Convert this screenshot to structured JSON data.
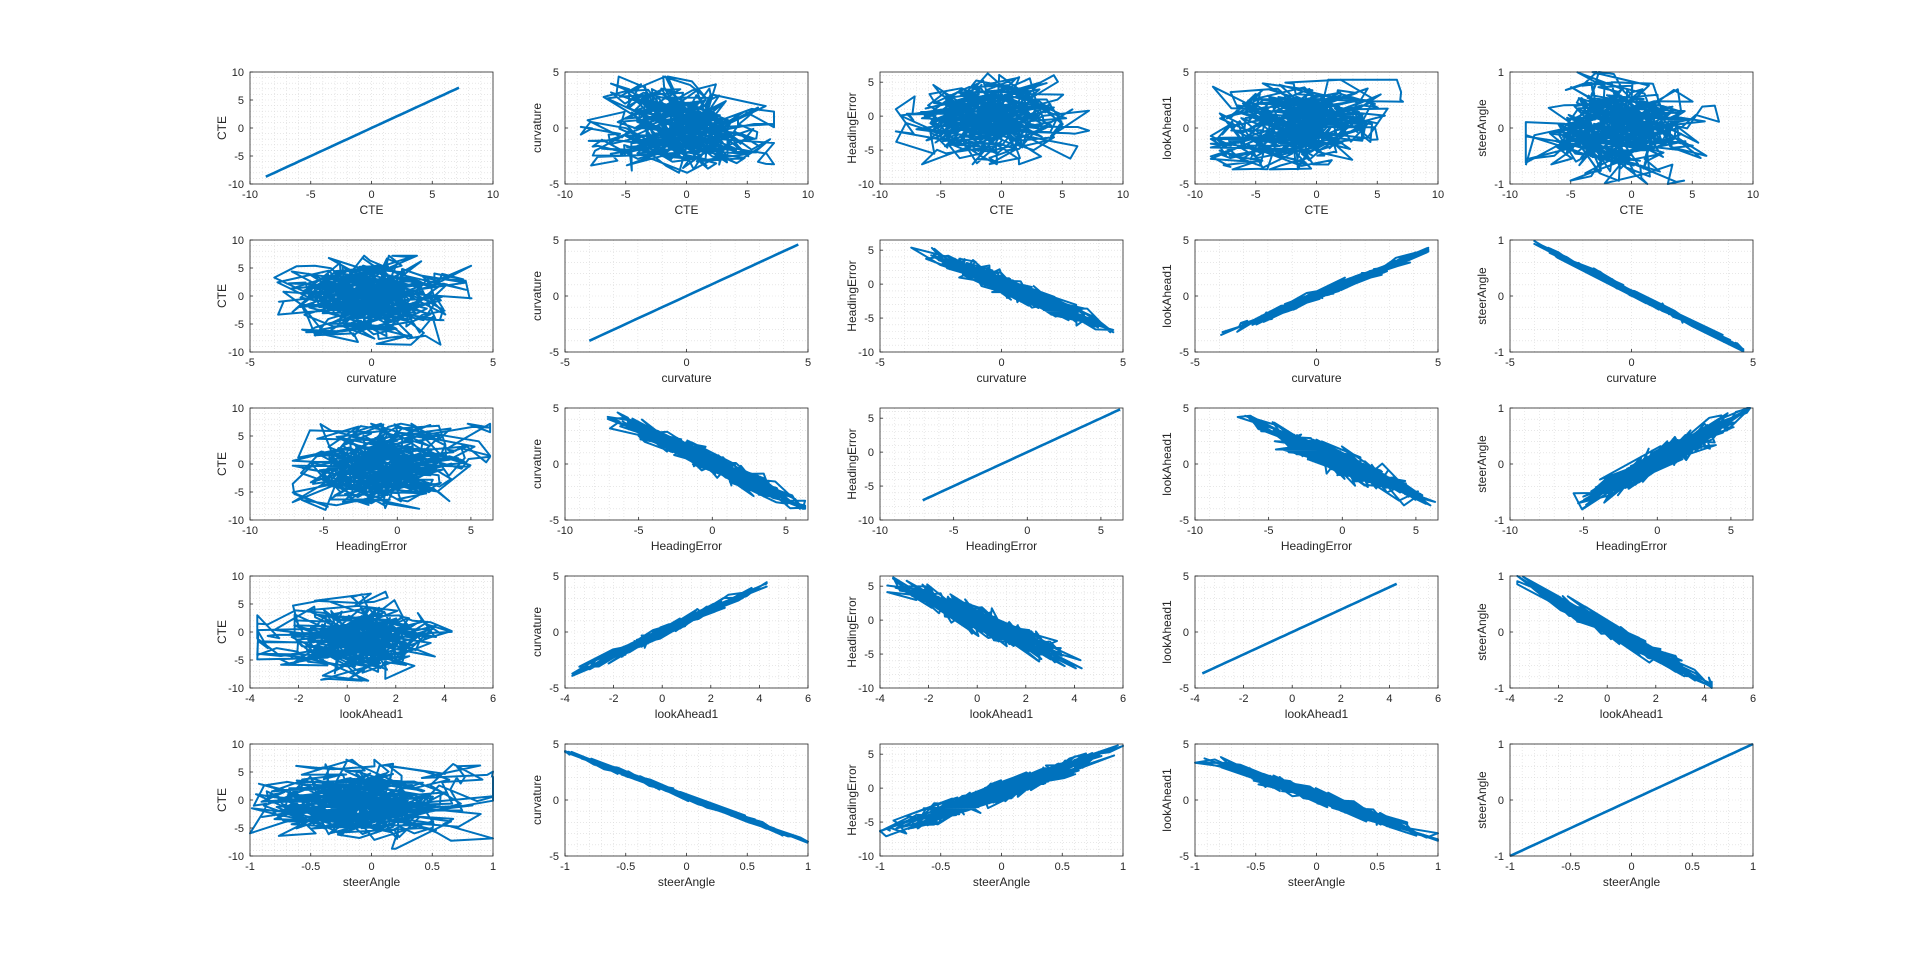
{
  "figure": {
    "title": "",
    "variables": [
      "CTE",
      "curvature",
      "HeadingError",
      "lookAhead1",
      "steerAngle"
    ],
    "series_color": "#0072BD",
    "grid_color": "#d9d9d9",
    "background": "#ffffff"
  },
  "chart_data": {
    "type": "scatter",
    "layout": "5x5 scatter-plot matrix (row variable on x-axis, column variable on y-axis)",
    "grid": true,
    "axes": {
      "CTE": {
        "lim": [
          -10,
          10
        ],
        "ticks": [
          -10,
          -5,
          0,
          5,
          10
        ],
        "data_range": [
          -8.7,
          7.2
        ]
      },
      "curvature": {
        "lim": [
          -5,
          5
        ],
        "ticks": [
          -5,
          0,
          5
        ],
        "data_range": [
          -4.0,
          4.6
        ]
      },
      "HeadingError": {
        "lim": [
          -10,
          6.5
        ],
        "ticks": [
          -10,
          -5,
          0,
          5
        ],
        "data_range": [
          -7.1,
          6.3
        ]
      },
      "lookAhead1": {
        "lim": [
          -4,
          6
        ],
        "ticks": [
          -4,
          -2,
          0,
          2,
          4,
          6
        ],
        "y_lim": [
          -5,
          5
        ],
        "y_ticks": [
          -5,
          0,
          5
        ],
        "data_range": [
          -3.7,
          4.3
        ]
      },
      "steerAngle": {
        "lim": [
          -1,
          1
        ],
        "ticks": [
          -1,
          -0.5,
          0,
          0.5,
          1
        ],
        "y_ticks": [
          -1,
          0,
          1
        ],
        "data_range": [
          -1.0,
          1.0
        ]
      }
    },
    "relations": {
      "curvature|HeadingError": -0.85,
      "curvature|lookAhead1": 0.93,
      "curvature|steerAngle": -0.96,
      "HeadingError|lookAhead1": -0.8,
      "HeadingError|steerAngle": 0.85,
      "lookAhead1|steerAngle": -0.9
    }
  }
}
